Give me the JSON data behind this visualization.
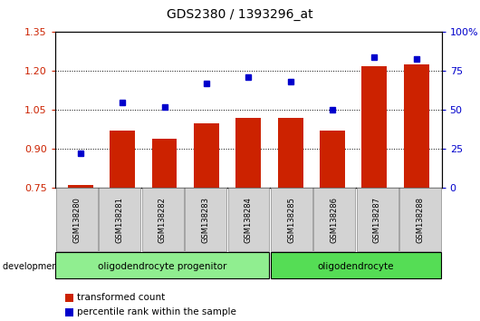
{
  "title": "GDS2380 / 1393296_at",
  "samples": [
    "GSM138280",
    "GSM138281",
    "GSM138282",
    "GSM138283",
    "GSM138284",
    "GSM138285",
    "GSM138286",
    "GSM138287",
    "GSM138288"
  ],
  "transformed_count": [
    0.762,
    0.97,
    0.94,
    1.0,
    1.02,
    1.02,
    0.97,
    1.22,
    1.225
  ],
  "percentile_rank": [
    22,
    55,
    52,
    67,
    71,
    68,
    50,
    84,
    83
  ],
  "ylim_left": [
    0.75,
    1.35
  ],
  "ylim_right": [
    0,
    100
  ],
  "bar_baseline": 0.75,
  "yticks_left": [
    0.75,
    0.9,
    1.05,
    1.2,
    1.35
  ],
  "yticks_right": [
    0,
    25,
    50,
    75,
    100
  ],
  "ytick_labels_right": [
    "0",
    "25",
    "50",
    "75",
    "100%"
  ],
  "bar_color": "#cc2200",
  "dot_color": "#0000cc",
  "groups": [
    {
      "label": "oligodendrocyte progenitor",
      "start": 0,
      "end": 5,
      "color": "#90ee90"
    },
    {
      "label": "oligodendrocyte",
      "start": 5,
      "end": 9,
      "color": "#55dd55"
    }
  ],
  "legend_items": [
    {
      "color": "#cc2200",
      "label": "transformed count"
    },
    {
      "color": "#0000cc",
      "label": "percentile rank within the sample"
    }
  ],
  "tick_label_color_left": "#cc2200",
  "tick_label_color_right": "#0000cc",
  "sample_box_color": "#d3d3d3",
  "fig_width": 5.3,
  "fig_height": 3.54,
  "dpi": 100
}
